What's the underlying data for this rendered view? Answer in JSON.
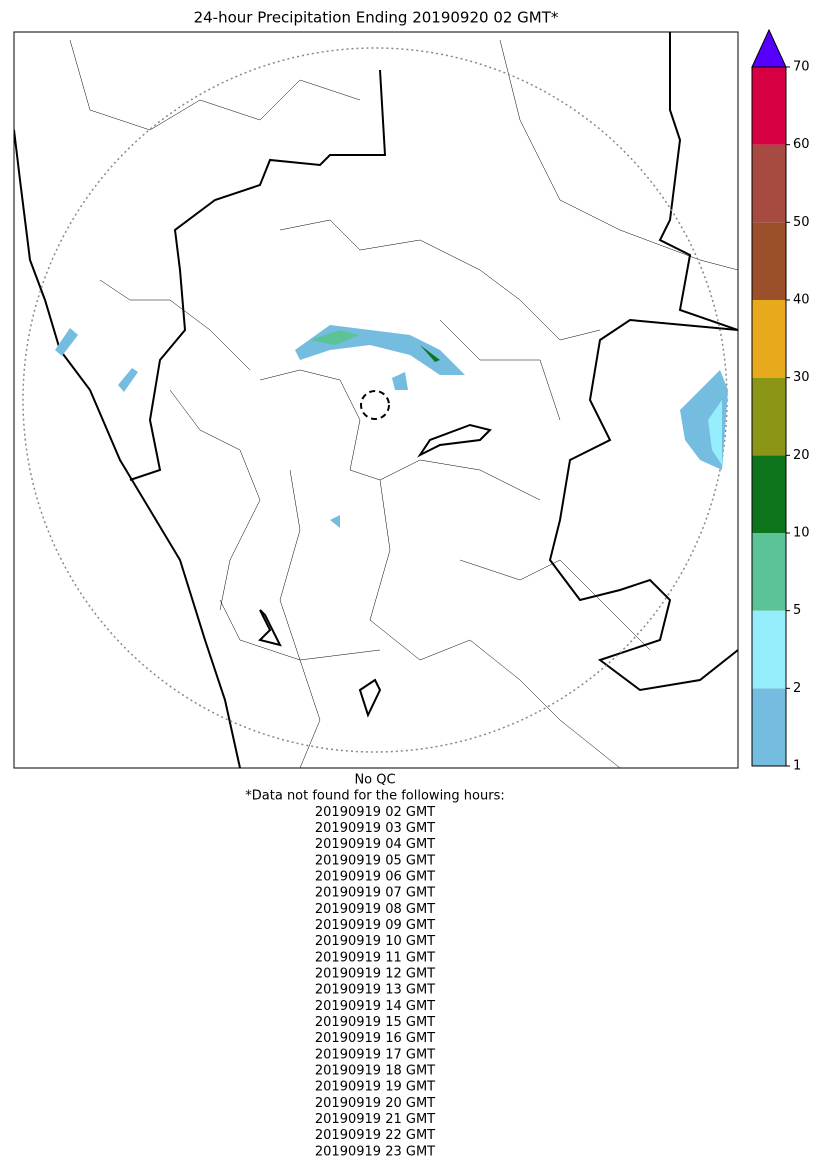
{
  "title": "24-hour Precipitation Ending 20190920 02 GMT*",
  "colorbar": {
    "bounds": [
      1,
      2,
      5,
      10,
      20,
      30,
      40,
      50,
      60,
      70
    ],
    "colors": [
      "#74bde0",
      "#96eefc",
      "#5cc399",
      "#0e741c",
      "#8b9516",
      "#e7aa1c",
      "#9b4f2a",
      "#a64a42",
      "#d60042"
    ],
    "extend_color": "#5500ff"
  },
  "footer": {
    "qc": "No QC",
    "note": "*Data not found for the following hours:",
    "hours": [
      "20190919 02 GMT",
      "20190919 03 GMT",
      "20190919 04 GMT",
      "20190919 05 GMT",
      "20190919 06 GMT",
      "20190919 07 GMT",
      "20190919 08 GMT",
      "20190919 09 GMT",
      "20190919 10 GMT",
      "20190919 11 GMT",
      "20190919 12 GMT",
      "20190919 13 GMT",
      "20190919 14 GMT",
      "20190919 15 GMT",
      "20190919 16 GMT",
      "20190919 17 GMT",
      "20190919 18 GMT",
      "20190919 19 GMT",
      "20190919 20 GMT",
      "20190919 21 GMT",
      "20190919 22 GMT",
      "20190919 23 GMT"
    ]
  }
}
